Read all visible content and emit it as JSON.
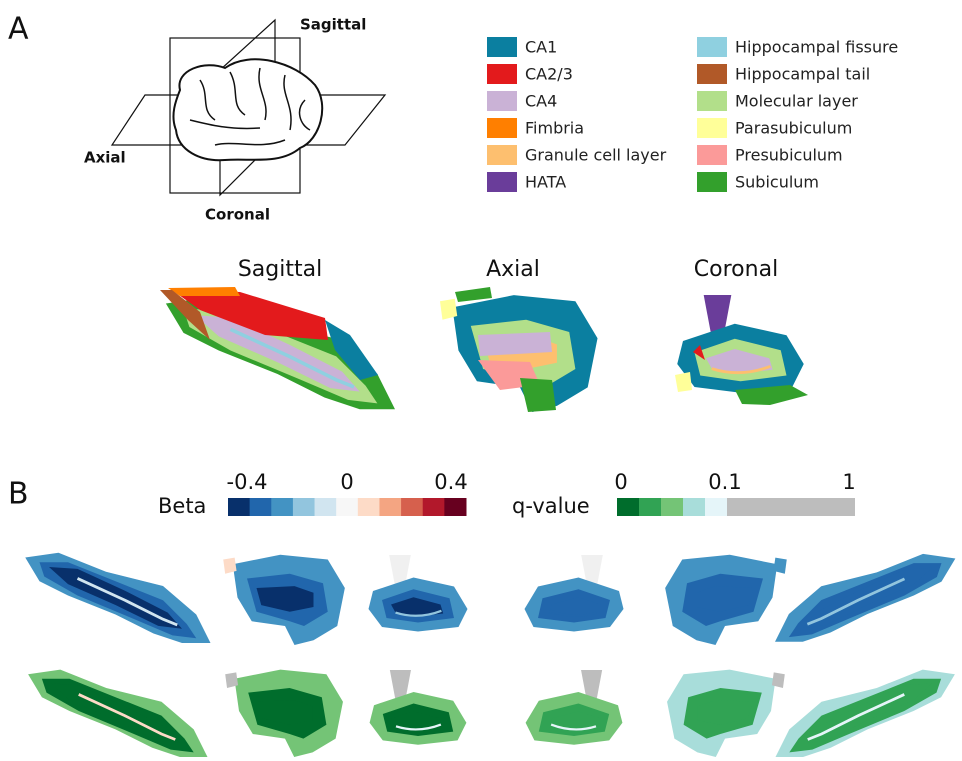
{
  "panel_a": {
    "label": "A",
    "planes": {
      "sagittal": "Sagittal",
      "axial": "Axial",
      "coronal": "Coronal"
    },
    "legend": [
      {
        "name": "CA1",
        "color": "#0b7fa0"
      },
      {
        "name": "CA2/3",
        "color": "#e31a1c"
      },
      {
        "name": "CA4",
        "color": "#cab2d6"
      },
      {
        "name": "Fimbria",
        "color": "#ff7f00"
      },
      {
        "name": "Granule cell layer",
        "color": "#fdbf6f"
      },
      {
        "name": "HATA",
        "color": "#6a3d9a"
      },
      {
        "name": "Hippocampal fissure",
        "color": "#8fd0e0"
      },
      {
        "name": "Hippocampal tail",
        "color": "#b15928"
      },
      {
        "name": "Molecular layer",
        "color": "#b2df8a"
      },
      {
        "name": "Parasubiculum",
        "color": "#ffff99"
      },
      {
        "name": "Presubiculum",
        "color": "#fb9a99"
      },
      {
        "name": "Subiculum",
        "color": "#33a02c"
      }
    ],
    "views": [
      "Sagittal",
      "Axial",
      "Coronal"
    ]
  },
  "panel_b": {
    "label": "B",
    "beta": {
      "label": "Beta",
      "ticks": [
        -0.4,
        0,
        0.4
      ],
      "colors": [
        "#08306b",
        "#2166ac",
        "#4393c3",
        "#92c5de",
        "#d1e5f0",
        "#f7f7f7",
        "#fddbc7",
        "#f4a582",
        "#d6604d",
        "#b2182b",
        "#67001f"
      ]
    },
    "qvalue": {
      "label": "q-value",
      "ticks": [
        0,
        0.1,
        1
      ],
      "colors": [
        "#006d2c",
        "#31a354",
        "#74c476",
        "#a8ddda",
        "#e5f5f9",
        "#bdbdbd"
      ]
    }
  }
}
